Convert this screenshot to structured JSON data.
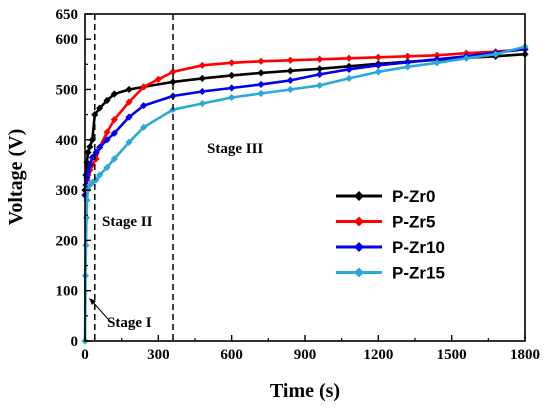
{
  "chart_data": {
    "type": "line",
    "xlabel": "Time (s)",
    "ylabel": "Voltage (V)",
    "xlim": [
      0,
      1800
    ],
    "ylim": [
      0,
      650
    ],
    "x_ticks": [
      0,
      300,
      600,
      900,
      1200,
      1500,
      1800
    ],
    "y_ticks": [
      0,
      100,
      200,
      300,
      400,
      500,
      600,
      650
    ],
    "grid": false,
    "legend_position": "right",
    "series": [
      {
        "name": "P-Zr0",
        "color": "#000000",
        "marker": "diamond",
        "x": [
          0,
          4,
          8,
          12,
          20,
          30,
          40,
          60,
          90,
          120,
          180,
          240,
          360,
          480,
          600,
          720,
          840,
          960,
          1080,
          1200,
          1320,
          1440,
          1560,
          1680,
          1800
        ],
        "y": [
          300,
          330,
          355,
          375,
          386,
          400,
          450,
          463,
          478,
          491,
          500,
          505,
          515,
          522,
          528,
          533,
          537,
          541,
          546,
          551,
          555,
          559,
          563,
          566,
          570
        ]
      },
      {
        "name": "P-Zr5",
        "color": "#ff0000",
        "marker": "diamond",
        "x": [
          0,
          4,
          8,
          12,
          20,
          30,
          45,
          60,
          90,
          120,
          180,
          240,
          300,
          360,
          480,
          600,
          720,
          840,
          960,
          1080,
          1200,
          1320,
          1440,
          1560,
          1680,
          1800
        ],
        "y": [
          290,
          310,
          320,
          330,
          340,
          350,
          362,
          385,
          415,
          440,
          475,
          505,
          520,
          535,
          548,
          553,
          556,
          558,
          560,
          562,
          564,
          566,
          568,
          572,
          575,
          580
        ]
      },
      {
        "name": "P-Zr10",
        "color": "#0000ee",
        "marker": "diamond",
        "x": [
          0,
          4,
          8,
          12,
          20,
          30,
          45,
          60,
          90,
          120,
          180,
          240,
          360,
          480,
          600,
          720,
          840,
          960,
          1080,
          1200,
          1320,
          1440,
          1560,
          1680,
          1800
        ],
        "y": [
          290,
          310,
          325,
          335,
          350,
          365,
          375,
          385,
          400,
          413,
          445,
          468,
          487,
          496,
          503,
          510,
          518,
          530,
          540,
          548,
          554,
          560,
          566,
          573,
          580
        ]
      },
      {
        "name": "P-Zr15",
        "color": "#2aa9d5",
        "marker": "diamond",
        "x": [
          0,
          2,
          4,
          6,
          8,
          12,
          20,
          30,
          45,
          60,
          90,
          120,
          180,
          240,
          360,
          480,
          600,
          720,
          840,
          960,
          1080,
          1200,
          1320,
          1440,
          1560,
          1680,
          1800
        ],
        "y": [
          0,
          130,
          190,
          245,
          280,
          300,
          310,
          315,
          320,
          330,
          345,
          362,
          395,
          425,
          460,
          472,
          484,
          492,
          500,
          508,
          522,
          535,
          545,
          553,
          562,
          570,
          585
        ]
      }
    ],
    "annotations": [
      {
        "text": "Stage I",
        "x": 55,
        "y": 40
      },
      {
        "text": "Stage II",
        "x": 78,
        "y": 235
      },
      {
        "text": "Stage III",
        "x": 500,
        "y": 380
      }
    ],
    "vlines": [
      40,
      360
    ]
  }
}
